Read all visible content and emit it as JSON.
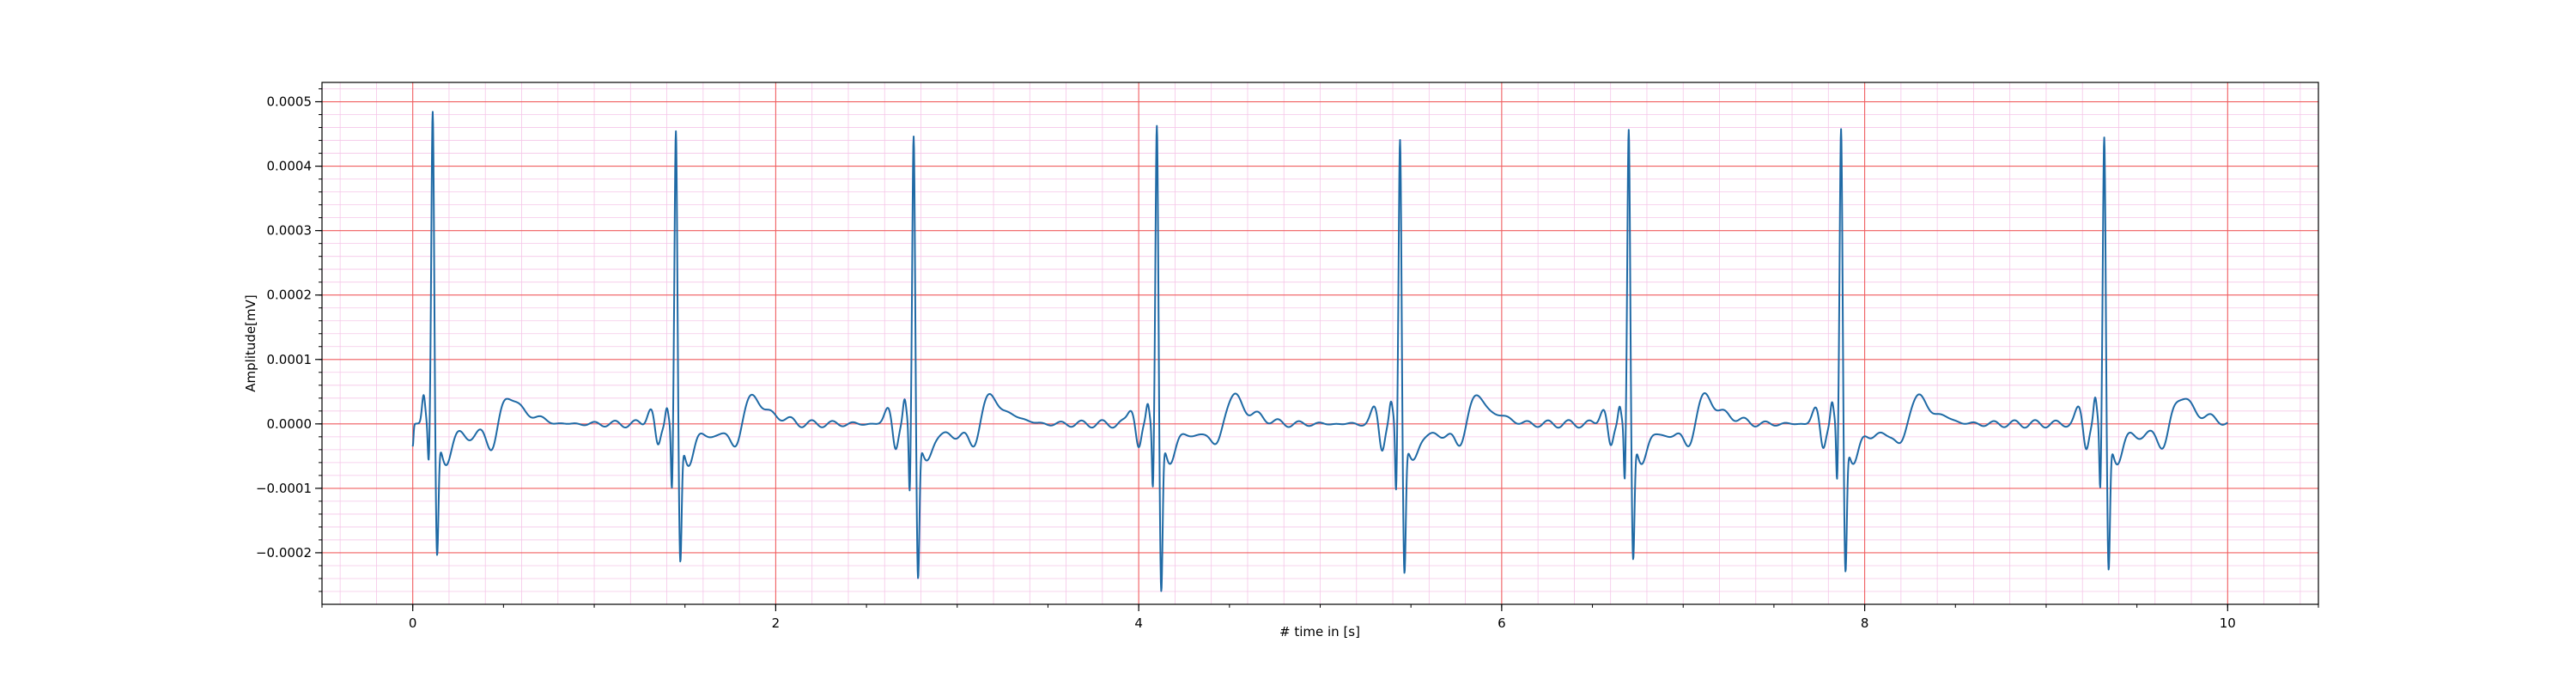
{
  "chart_data": {
    "type": "line",
    "title": "",
    "xlabel": "# time in [s]",
    "ylabel": "Amplitude[mV]",
    "xlim": [
      -0.5,
      10.5
    ],
    "ylim": [
      -0.00028,
      0.00053
    ],
    "x_major_ticks": [
      0,
      2,
      4,
      6,
      8,
      10
    ],
    "x_tick_labels": [
      "0",
      "2",
      "4",
      "6",
      "8",
      "10"
    ],
    "y_major_ticks": [
      -0.0002,
      -0.0001,
      0.0,
      0.0001,
      0.0002,
      0.0003,
      0.0004,
      0.0005
    ],
    "y_tick_labels": [
      "−0.0002",
      "−0.0001",
      "0.0000",
      "0.0001",
      "0.0002",
      "0.0003",
      "0.0004",
      "0.0005"
    ],
    "grid": {
      "major": true,
      "minor": true,
      "major_color": "#f06060",
      "minor_color": "#f5c6e8"
    },
    "series_color": "#1f6aa5",
    "series": [
      {
        "name": "",
        "beats": [
          {
            "r_time": 0.11,
            "r_peak": 0.00049,
            "s_trough": -0.00019,
            "q_dip": -6e-05,
            "pre_peak": 4.5e-05
          },
          {
            "r_time": 1.45,
            "r_peak": 0.000455,
            "s_trough": -0.0002,
            "q_dip": -0.000105,
            "pre_peak": 3e-05
          },
          {
            "r_time": 2.76,
            "r_peak": 0.000455,
            "s_trough": -0.00022,
            "q_dip": -0.00011,
            "pre_peak": 3.5e-05
          },
          {
            "r_time": 4.1,
            "r_peak": 0.00047,
            "s_trough": -0.000245,
            "q_dip": -0.0001,
            "pre_peak": 3e-05
          },
          {
            "r_time": 5.44,
            "r_peak": 0.00045,
            "s_trough": -0.00021,
            "q_dip": -0.00011,
            "pre_peak": 3e-05
          },
          {
            "r_time": 6.7,
            "r_peak": 0.00046,
            "s_trough": -0.000195,
            "q_dip": -9e-05,
            "pre_peak": 3e-05
          },
          {
            "r_time": 7.87,
            "r_peak": 0.00046,
            "s_trough": -0.00021,
            "q_dip": -9.5e-05,
            "pre_peak": 3.5e-05
          },
          {
            "r_time": 9.32,
            "r_peak": 0.00045,
            "s_trough": -0.00021,
            "q_dip": -0.000105,
            "pre_peak": 4e-05
          }
        ],
        "start_value": -3.5e-05,
        "x_start": 0.0,
        "x_end": 10.0,
        "t_wave_peak": 4.2e-05,
        "baseline": 0.0
      }
    ]
  }
}
